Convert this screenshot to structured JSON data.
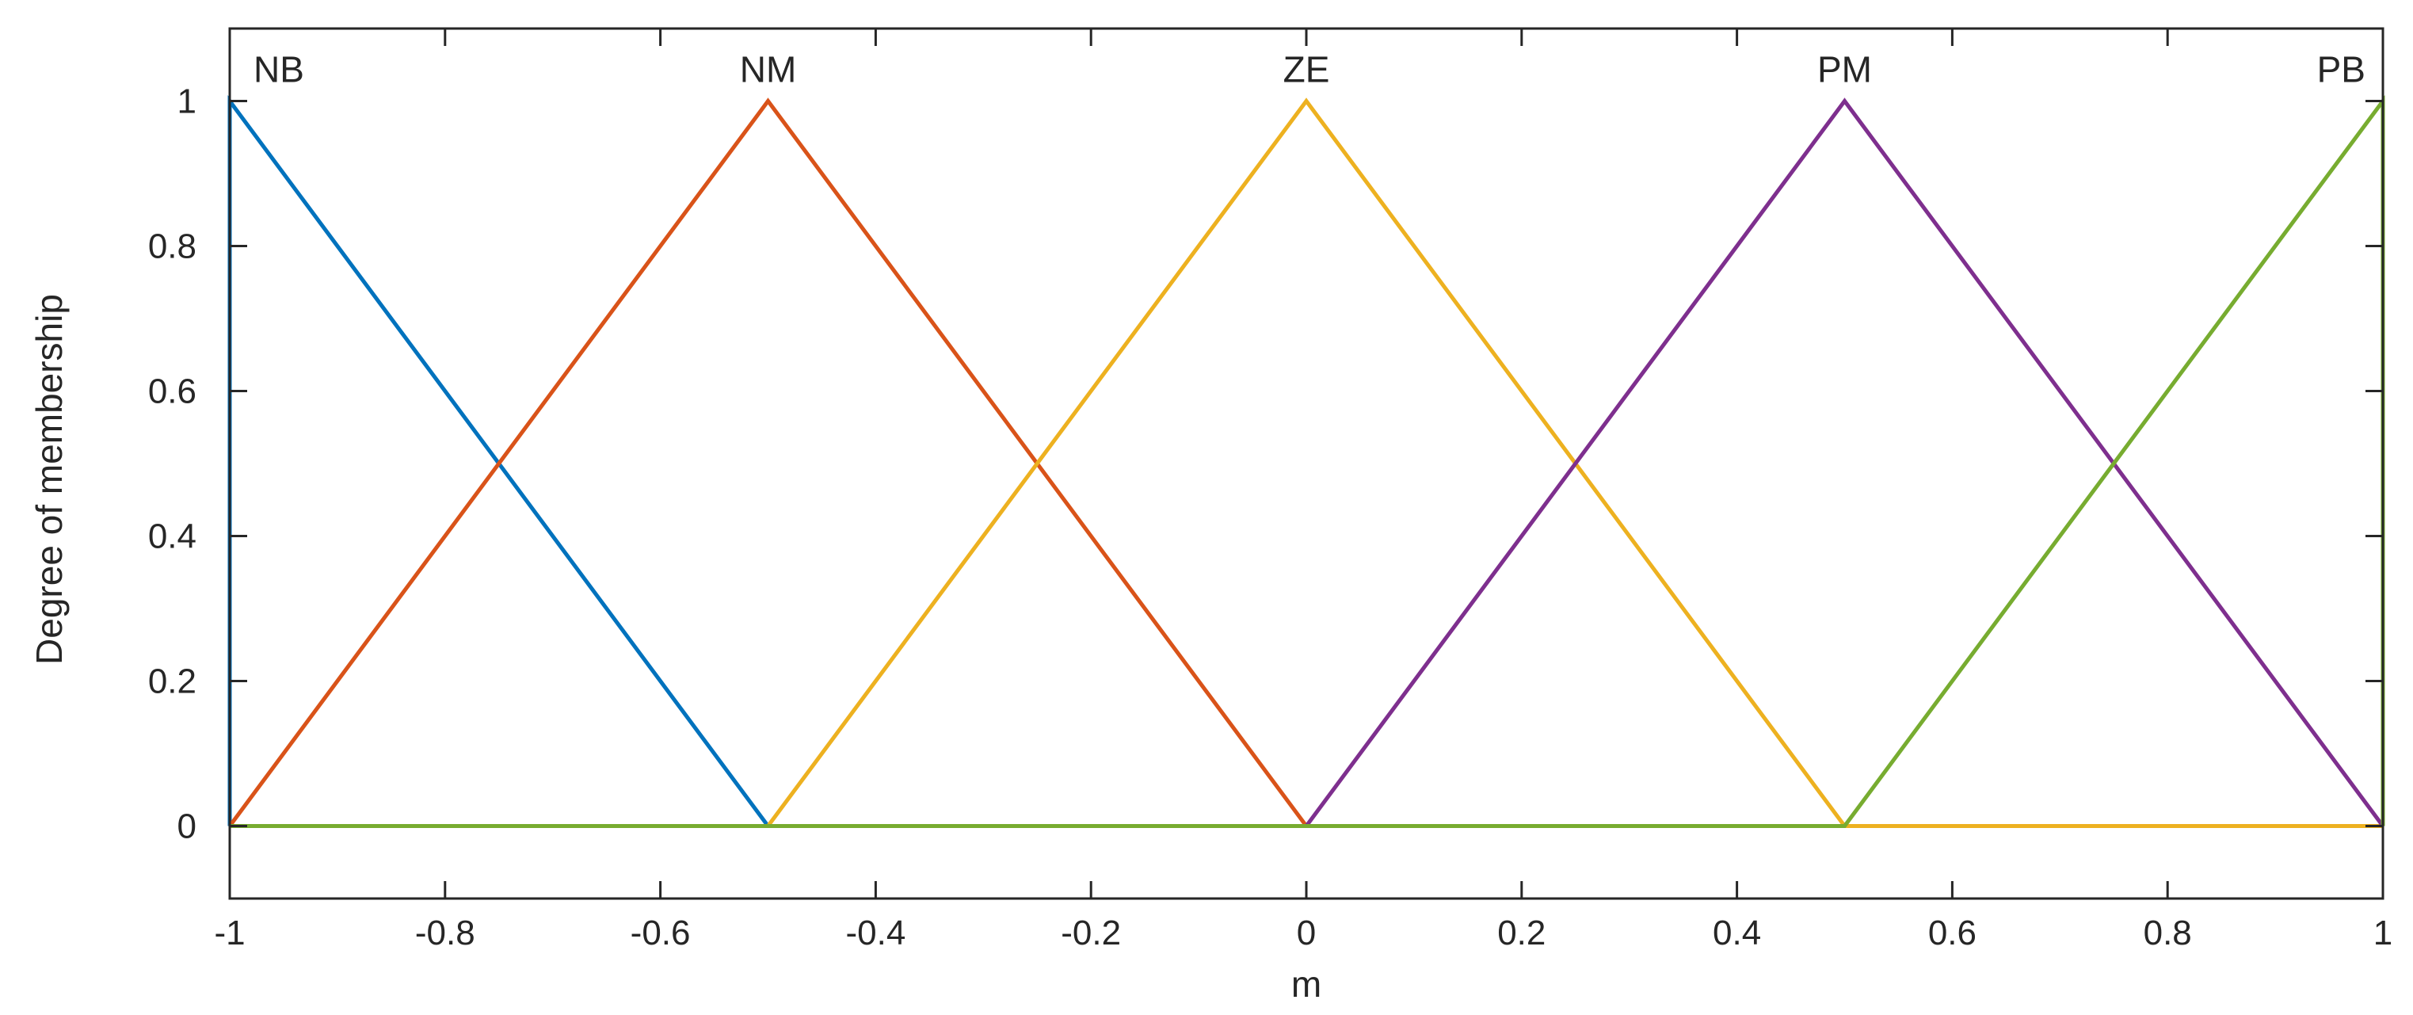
{
  "chart_data": {
    "type": "line",
    "title": "",
    "xlabel": "m",
    "ylabel": "Degree of membership",
    "xlim": [
      -1,
      1
    ],
    "ylim": [
      -0.1,
      1.1
    ],
    "xticks": [
      -1,
      -0.8,
      -0.6,
      -0.4,
      -0.2,
      0,
      0.2,
      0.4,
      0.6,
      0.8,
      1
    ],
    "xtick_labels": [
      "-1",
      "-0.8",
      "-0.6",
      "-0.4",
      "-0.2",
      "0",
      "0.2",
      "0.4",
      "0.6",
      "0.8",
      "1"
    ],
    "yticks": [
      0,
      0.2,
      0.4,
      0.6,
      0.8,
      1
    ],
    "ytick_labels": [
      "0",
      "0.2",
      "0.4",
      "0.6",
      "0.8",
      "1"
    ],
    "grid": false,
    "box": true,
    "series": [
      {
        "name": "NB",
        "color": "#0072BD",
        "x": [
          -1,
          -1,
          -0.5,
          1
        ],
        "y": [
          0,
          1,
          0,
          0
        ]
      },
      {
        "name": "NM",
        "color": "#D95319",
        "x": [
          -1,
          -0.5,
          0,
          1
        ],
        "y": [
          0,
          1,
          0,
          0
        ]
      },
      {
        "name": "ZE",
        "color": "#EDB120",
        "x": [
          -1,
          -0.5,
          0,
          0.5,
          1
        ],
        "y": [
          0,
          0,
          1,
          0,
          0
        ]
      },
      {
        "name": "PM",
        "color": "#7E2F8E",
        "x": [
          -1,
          0,
          0.5,
          1
        ],
        "y": [
          0,
          0,
          1,
          0
        ]
      },
      {
        "name": "PB",
        "color": "#77AC30",
        "x": [
          -1,
          0.5,
          1,
          1
        ],
        "y": [
          0,
          0,
          1,
          0
        ]
      }
    ],
    "annotations": [
      {
        "text": "NB",
        "x": -1,
        "y": 1,
        "align": "left"
      },
      {
        "text": "NM",
        "x": -0.5,
        "y": 1,
        "align": "center"
      },
      {
        "text": "ZE",
        "x": 0,
        "y": 1,
        "align": "center"
      },
      {
        "text": "PM",
        "x": 0.5,
        "y": 1,
        "align": "center"
      },
      {
        "text": "PB",
        "x": 1,
        "y": 1,
        "align": "right"
      }
    ]
  }
}
